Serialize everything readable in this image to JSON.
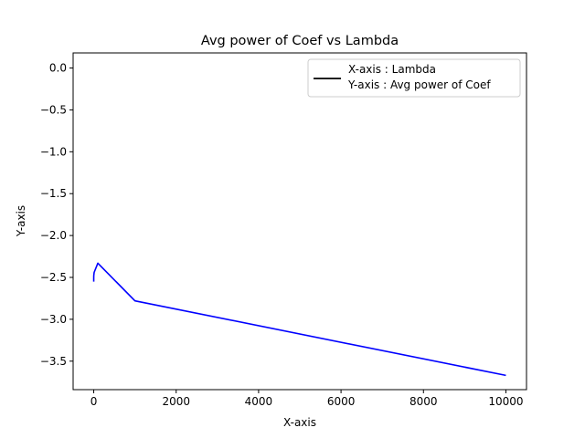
{
  "chart_data": {
    "type": "line",
    "title": "Avg power of Coef vs Lambda",
    "xlabel": "X-axis",
    "ylabel": "Y-axis",
    "xlim": [
      -500,
      10500
    ],
    "ylim": [
      -3.84,
      0.18
    ],
    "xticks": [
      0,
      2000,
      4000,
      6000,
      8000,
      10000
    ],
    "xtick_labels": [
      "0",
      "2000",
      "4000",
      "6000",
      "8000",
      "10000"
    ],
    "yticks": [
      0.0,
      -0.5,
      -1.0,
      -1.5,
      -2.0,
      -2.5,
      -3.0,
      -3.5
    ],
    "ytick_labels": [
      "0.0",
      "−0.5",
      "−1.0",
      "−1.5",
      "−2.0",
      "−2.5",
      "−3.0",
      "−3.5"
    ],
    "grid": false,
    "legend": {
      "placement": "upper-right",
      "lines": [
        "X-axis : Lambda",
        "Y-axis : Avg power of Coef"
      ],
      "swatch_color": "#000000"
    },
    "series": [
      {
        "name": "Avg power of Coef",
        "color": "#0000ff",
        "x": [
          0.001,
          0.01,
          0.1,
          1,
          10,
          100,
          1000,
          10000
        ],
        "y": [
          -2.55,
          -2.53,
          -2.51,
          -2.48,
          -2.44,
          -2.33,
          -2.78,
          -3.67
        ]
      }
    ]
  }
}
